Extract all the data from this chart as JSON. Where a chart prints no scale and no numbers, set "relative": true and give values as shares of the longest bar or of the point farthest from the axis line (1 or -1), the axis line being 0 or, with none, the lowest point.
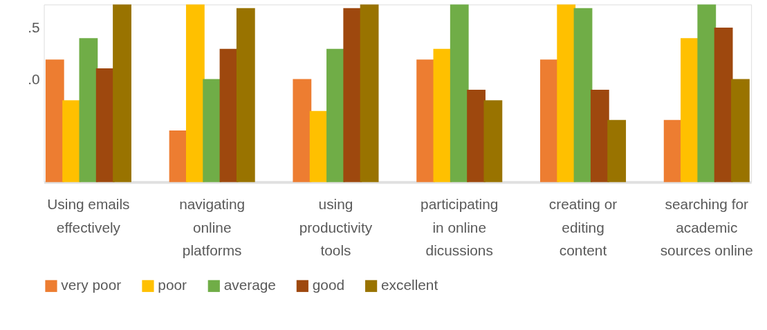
{
  "chart_data": {
    "type": "bar",
    "relative": true,
    "categories": [
      "Using emails effectively",
      "navigating online platforms",
      "using productivity tools",
      "participating in online dicussions",
      "creating or editing content",
      "searching for academic sources online"
    ],
    "series": [
      {
        "name": "very poor",
        "color": "#ed7d31",
        "values": [
          0.69,
          0.29,
          0.58,
          0.69,
          0.69,
          0.35
        ]
      },
      {
        "name": "poor",
        "color": "#ffc000",
        "values": [
          0.46,
          1,
          0.4,
          0.75,
          1,
          0.81
        ]
      },
      {
        "name": "average",
        "color": "#70ad47",
        "values": [
          0.81,
          0.58,
          0.75,
          1,
          0.98,
          1
        ]
      },
      {
        "name": "good",
        "color": "#9e480e",
        "values": [
          0.64,
          0.75,
          0.98,
          0.52,
          0.52,
          0.87
        ]
      },
      {
        "name": "excellent",
        "color": "#997300",
        "values": [
          1,
          0.98,
          1,
          0.46,
          0.35,
          0.58
        ]
      }
    ],
    "annotations": [
      ".5",
      ".0"
    ],
    "legend": "bottom"
  }
}
